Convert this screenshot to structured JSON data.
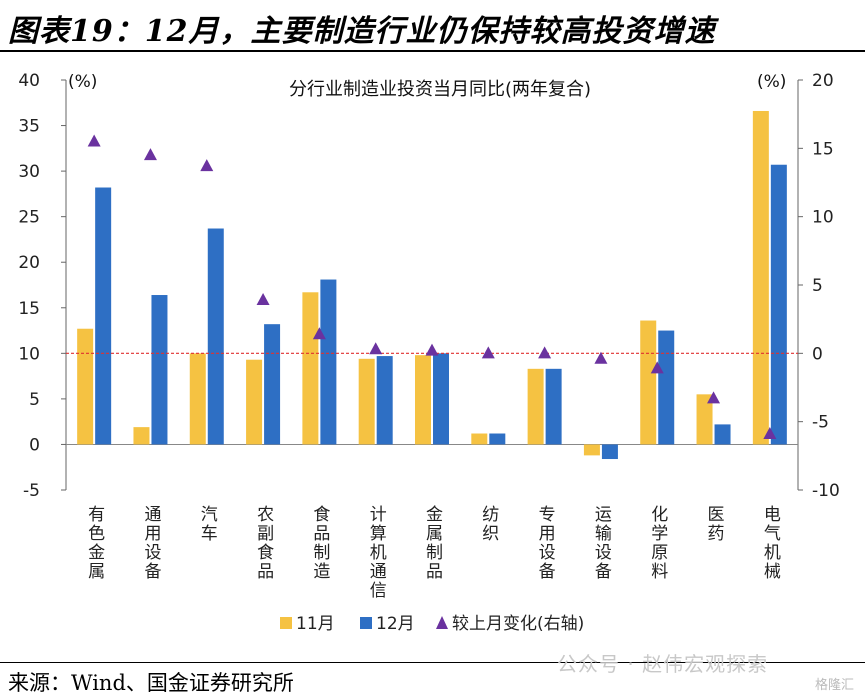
{
  "header": {
    "figure_title": "图表19：12月，主要制造行业仍保持较高投资增速"
  },
  "footer": {
    "source": "来源：Wind、国金证券研究所",
    "watermark": "公众号 · 赵伟宏观探索",
    "badge": "格隆汇"
  },
  "chart_data": {
    "type": "bar",
    "title": "分行业制造业投资当月同比(两年复合)",
    "left_unit": "(%)",
    "right_unit": "(%)",
    "categories": [
      "有色金属",
      "通用设备",
      "汽车",
      "农副食品",
      "食品制造",
      "计算机通信",
      "金属制品",
      "纺织",
      "专用设备",
      "运输设备",
      "化学原料",
      "医药",
      "电气机械"
    ],
    "series": [
      {
        "name": "11月",
        "axis": "left",
        "color": "#F5C242",
        "values": [
          12.7,
          1.9,
          10.0,
          9.3,
          16.7,
          9.4,
          9.8,
          1.2,
          8.3,
          -1.2,
          13.6,
          5.5,
          36.6
        ]
      },
      {
        "name": "12月",
        "axis": "left",
        "color": "#2E6FC4",
        "values": [
          28.2,
          16.4,
          23.7,
          13.2,
          18.1,
          9.7,
          10.0,
          1.2,
          8.3,
          -1.6,
          12.5,
          2.2,
          30.7
        ]
      },
      {
        "name": "较上月变化(右轴)",
        "axis": "right",
        "type": "scatter",
        "color": "#6A329F",
        "values": [
          15.5,
          14.5,
          13.7,
          3.9,
          1.4,
          0.3,
          0.2,
          0.0,
          0.0,
          -0.4,
          -1.1,
          -3.3,
          -5.9
        ]
      }
    ],
    "left_axis": {
      "ylim": [
        -5,
        40
      ],
      "ticks": [
        -5,
        0,
        5,
        10,
        15,
        20,
        25,
        30,
        35,
        40
      ]
    },
    "right_axis": {
      "ylim": [
        -10,
        20
      ],
      "ticks": [
        -10,
        -5,
        0,
        5,
        10,
        15,
        20
      ]
    },
    "reference_line": {
      "axis": "right",
      "value": 0,
      "color": "#E03030"
    },
    "legend_position": "bottom"
  }
}
